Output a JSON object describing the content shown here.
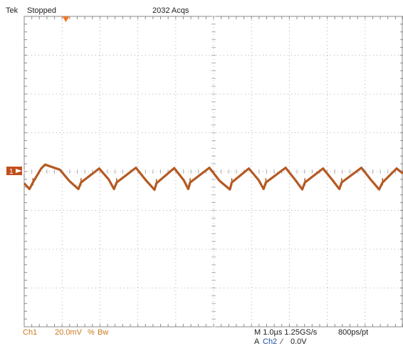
{
  "header": {
    "brand": "Tek",
    "status": "Stopped",
    "acquisitions": "2032 Acqs"
  },
  "footer": {
    "channel": "Ch1",
    "scale": "20.0mV",
    "coupling_symbol": "%",
    "bw_label": "Bw",
    "timebase": "M 1.0µs 1.25GS/s",
    "record": "800ps/pt",
    "trigger_prefix": "A",
    "trigger_source": "Ch2",
    "trigger_slope": "∕",
    "trigger_level": "0.0V"
  },
  "channel_marker": "1",
  "colors": {
    "trace": "#b45a23",
    "marker": "#c0501e",
    "trigger": "#f07828",
    "grid": "#b0b0b0",
    "text_orange": "#c87820",
    "text_blue": "#1e4fa0"
  },
  "chart_data": {
    "type": "line",
    "title": "",
    "xlabel": "",
    "ylabel": "",
    "x_divisions": 10,
    "y_divisions": 8,
    "x_units_per_div": "1.0µs",
    "y_units_per_div": "20.0mV",
    "xlim": [
      0,
      10
    ],
    "ylim": [
      -4,
      4
    ],
    "grid": true,
    "series": [
      {
        "x": [
          0,
          0.14,
          0.23,
          0.45,
          0.55,
          0.94,
          1.2,
          1.43,
          1.5,
          1.98,
          2.23,
          2.37,
          2.44,
          2.95,
          3.21,
          3.44,
          3.49,
          3.96,
          4.21,
          4.33,
          4.38,
          4.89,
          5.16,
          5.43,
          5.48,
          5.93,
          6.19,
          6.32,
          6.38,
          6.9,
          7.16,
          7.34,
          7.41,
          7.89,
          8.14,
          8.32,
          8.38,
          8.9,
          9.16,
          9.37,
          9.46,
          9.83,
          10
        ],
        "y": [
          -0.3,
          -0.45,
          -0.28,
          0.08,
          0.18,
          0.05,
          -0.25,
          -0.45,
          -0.28,
          0.08,
          -0.2,
          -0.45,
          -0.28,
          0.1,
          -0.22,
          -0.47,
          -0.3,
          0.09,
          -0.22,
          -0.45,
          -0.28,
          0.1,
          -0.24,
          -0.46,
          -0.28,
          0.08,
          -0.22,
          -0.45,
          -0.28,
          0.1,
          -0.22,
          -0.46,
          -0.28,
          0.08,
          -0.22,
          -0.45,
          -0.28,
          0.1,
          -0.22,
          -0.46,
          -0.28,
          0.08,
          -0.05
        ]
      }
    ]
  }
}
